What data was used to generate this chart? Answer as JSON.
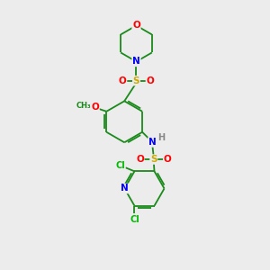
{
  "bg_color": "#ececec",
  "bond_color": "#1a8a1a",
  "atom_colors": {
    "O": "#ff0000",
    "N": "#0000ff",
    "S": "#ccaa00",
    "Cl": "#00bb00",
    "H": "#888888"
  }
}
